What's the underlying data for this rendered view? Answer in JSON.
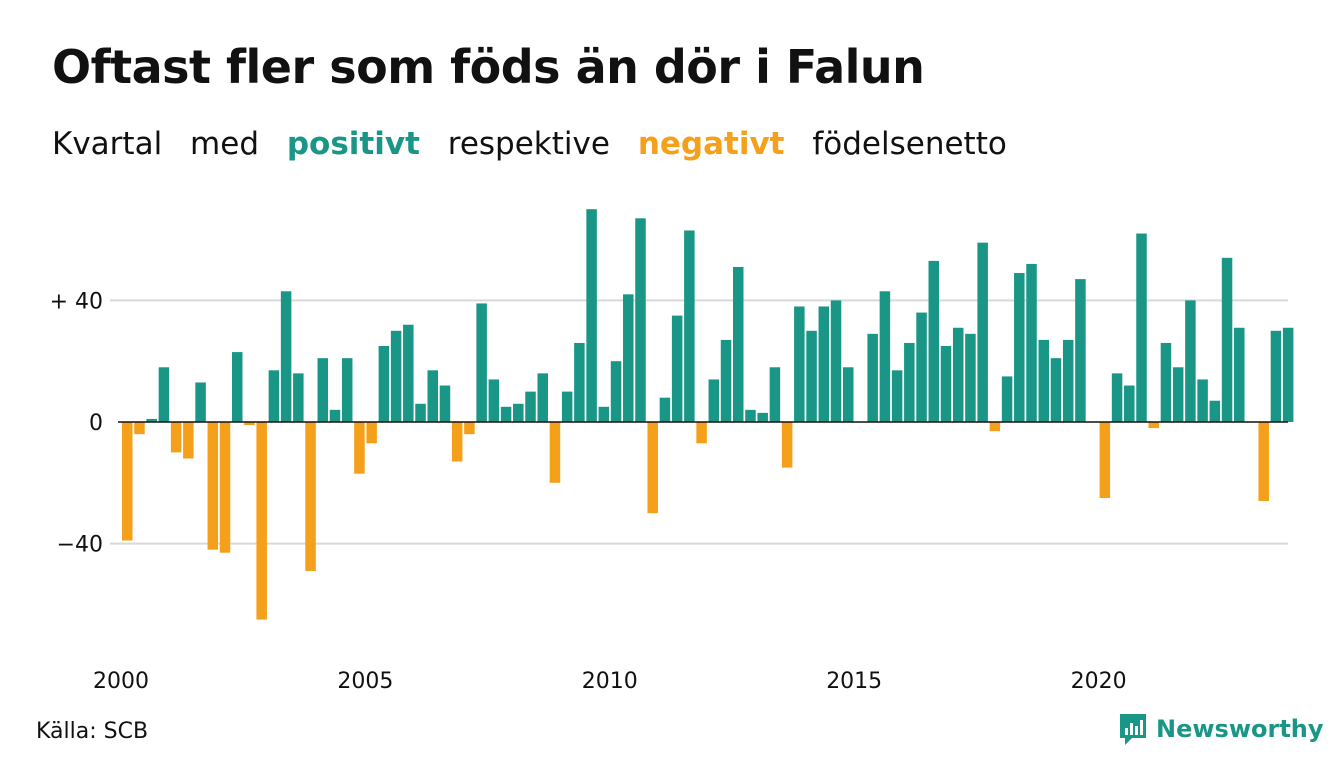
{
  "title": "Oftast fler som föds än dör i Falun",
  "subtitle": {
    "w1": "Kvartal",
    "w2": "med",
    "pos": "positivt",
    "w3": "respektive",
    "neg": "negativt",
    "w4": "födelsenetto"
  },
  "colors": {
    "positive": "#1a9687",
    "negative": "#f5a01a",
    "grid": "#d9d9d9",
    "axis": "#111111"
  },
  "source": "Källa: SCB",
  "brand": {
    "name": "Newsworthy",
    "icon": "newsworthy-logo-icon"
  },
  "chart_data": {
    "type": "bar",
    "title": "Oftast fler som föds än dör i Falun",
    "xlabel": "",
    "ylabel": "",
    "x_ticks": [
      "2000",
      "2005",
      "2010",
      "2015",
      "2020"
    ],
    "y_ticks": [
      {
        "value": 40,
        "label": "+ 40"
      },
      {
        "value": 0,
        "label": "0"
      },
      {
        "value": -40,
        "label": "−40"
      }
    ],
    "ylim": [
      -72,
      72
    ],
    "grid": true,
    "start_year": 2000,
    "categories": [
      "2000 Q1",
      "2000 Q2",
      "2000 Q3",
      "2000 Q4",
      "2001 Q1",
      "2001 Q2",
      "2001 Q3",
      "2001 Q4",
      "2002 Q1",
      "2002 Q2",
      "2002 Q3",
      "2002 Q4",
      "2003 Q1",
      "2003 Q2",
      "2003 Q3",
      "2003 Q4",
      "2004 Q1",
      "2004 Q2",
      "2004 Q3",
      "2004 Q4",
      "2005 Q1",
      "2005 Q2",
      "2005 Q3",
      "2005 Q4",
      "2006 Q1",
      "2006 Q2",
      "2006 Q3",
      "2006 Q4",
      "2007 Q1",
      "2007 Q2",
      "2007 Q3",
      "2007 Q4",
      "2008 Q1",
      "2008 Q2",
      "2008 Q3",
      "2008 Q4",
      "2009 Q1",
      "2009 Q2",
      "2009 Q3",
      "2009 Q4",
      "2010 Q1",
      "2010 Q2",
      "2010 Q3",
      "2010 Q4",
      "2011 Q1",
      "2011 Q2",
      "2011 Q3",
      "2011 Q4",
      "2012 Q1",
      "2012 Q2",
      "2012 Q3",
      "2012 Q4",
      "2013 Q1",
      "2013 Q2",
      "2013 Q3",
      "2013 Q4",
      "2014 Q1",
      "2014 Q2",
      "2014 Q3",
      "2014 Q4",
      "2015 Q1",
      "2015 Q2",
      "2015 Q3",
      "2015 Q4",
      "2016 Q1",
      "2016 Q2",
      "2016 Q3",
      "2016 Q4",
      "2017 Q1",
      "2017 Q2",
      "2017 Q3",
      "2017 Q4",
      "2018 Q1",
      "2018 Q2",
      "2018 Q3",
      "2018 Q4",
      "2019 Q1",
      "2019 Q2",
      "2019 Q3",
      "2019 Q4",
      "2020 Q1",
      "2020 Q2",
      "2020 Q3",
      "2020 Q4",
      "2021 Q1",
      "2021 Q2",
      "2021 Q3",
      "2021 Q4",
      "2022 Q1",
      "2022 Q2",
      "2022 Q3",
      "2022 Q4",
      "2023 Q1",
      "2023 Q2",
      "2023 Q3",
      "2023 Q4"
    ],
    "values": [
      -39,
      -4,
      1,
      18,
      -10,
      -12,
      13,
      -42,
      -43,
      23,
      -1,
      -65,
      17,
      43,
      16,
      -49,
      21,
      4,
      21,
      -17,
      -7,
      25,
      30,
      32,
      6,
      17,
      12,
      -13,
      -4,
      39,
      14,
      5,
      6,
      10,
      16,
      -20,
      10,
      26,
      70,
      5,
      20,
      42,
      67,
      -30,
      8,
      35,
      63,
      -7,
      14,
      27,
      51,
      4,
      3,
      18,
      -15,
      38,
      30,
      38,
      40,
      18,
      0,
      29,
      43,
      17,
      26,
      36,
      53,
      25,
      31,
      29,
      59,
      -3,
      15,
      49,
      52,
      27,
      21,
      27,
      47,
      0,
      -25,
      16,
      12,
      62,
      -2,
      26,
      18,
      40,
      14,
      7,
      54,
      31,
      0,
      -26,
      30,
      31
    ]
  }
}
